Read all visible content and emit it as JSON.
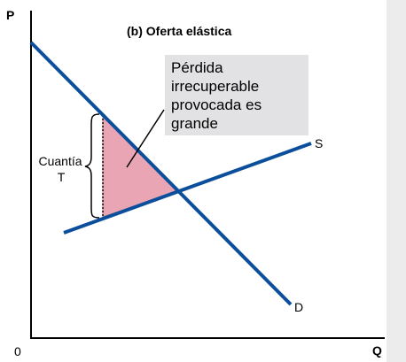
{
  "title": "(b) Oferta elástica",
  "axes": {
    "y_label": "P",
    "x_label": "Q",
    "origin_label": "0"
  },
  "curves": {
    "demand_label": "D",
    "supply_label": "S"
  },
  "tax_brace": {
    "line1": "Cuantía",
    "line2": "T"
  },
  "callout": {
    "lines": [
      "Pérdida",
      "irrecuperable",
      "provocada es",
      "grande"
    ]
  },
  "colors": {
    "curve": "#0b4f9c",
    "deadweight_fill": "#e9a5b4",
    "deadweight_stroke": "#c08090",
    "callout_bg": "#e2e2e4",
    "right_panel_edge": "#ececec"
  }
}
